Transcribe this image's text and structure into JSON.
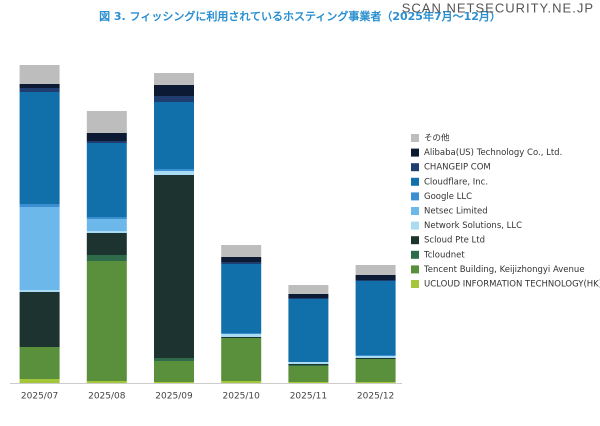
{
  "chart_data": {
    "type": "stacked_bar",
    "title": "図 3. フィッシングに利用されているホスティング事業者（2025年7月～12月）",
    "watermark": "SCAN.NETSECURITY.NE.JP",
    "categories": [
      "2025/07",
      "2025/08",
      "2025/09",
      "2025/10",
      "2025/11",
      "2025/12"
    ],
    "ylim": [
      0,
      330
    ],
    "legend": "right",
    "series": [
      {
        "name": "その他",
        "color": "#bdbdbd",
        "values": [
          19,
          22,
          12,
          12,
          9,
          10
        ]
      },
      {
        "name": "Alibaba(US) Technology Co., Ltd.",
        "color": "#0d1a33",
        "values": [
          4,
          8,
          11,
          5,
          4,
          5
        ]
      },
      {
        "name": "CHANGEIP COM",
        "color": "#1f3d6e",
        "values": [
          4,
          2,
          6,
          2,
          1,
          1
        ]
      },
      {
        "name": "Cloudflare, Inc.",
        "color": "#1170aa",
        "values": [
          112,
          74,
          67,
          69,
          63,
          74
        ]
      },
      {
        "name": "Google LLC",
        "color": "#3b8ed0",
        "values": [
          3,
          2,
          2,
          1,
          0,
          1
        ]
      },
      {
        "name": "Netsec Limited",
        "color": "#6cb8ea",
        "values": [
          83,
          12,
          0,
          0,
          0,
          0
        ]
      },
      {
        "name": "Network Solutions, LLC",
        "color": "#a9dcf2",
        "values": [
          2,
          2,
          4,
          3,
          2,
          2
        ]
      },
      {
        "name": "Scloud Pte Ltd",
        "color": "#1d3330",
        "values": [
          55,
          22,
          183,
          1,
          1,
          1
        ]
      },
      {
        "name": "Tcloudnet",
        "color": "#2e6b4a",
        "values": [
          0,
          6,
          3,
          0,
          1,
          0
        ]
      },
      {
        "name": "Tencent Building, Keijizhongyi Avenue",
        "color": "#5a8f3c",
        "values": [
          32,
          120,
          21,
          43,
          16,
          23
        ]
      },
      {
        "name": "UCLOUD INFORMATION TECHNOLOGY(HK)",
        "color": "#a4c639",
        "values": [
          4,
          2,
          1,
          2,
          1,
          1
        ]
      }
    ]
  }
}
